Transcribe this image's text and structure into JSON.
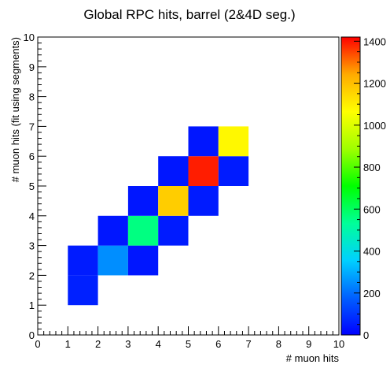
{
  "chart_data": {
    "type": "heatmap",
    "title": "Global RPC hits, barrel (2&4D seg.)",
    "xlabel": "# muon hits",
    "ylabel": "# muon hits (fit using segments)",
    "xlim": [
      0,
      10
    ],
    "ylim": [
      0,
      10
    ],
    "xticks": [
      "0",
      "1",
      "2",
      "3",
      "4",
      "5",
      "6",
      "7",
      "8",
      "9",
      "10"
    ],
    "yticks": [
      "0",
      "1",
      "2",
      "3",
      "4",
      "5",
      "6",
      "7",
      "8",
      "9",
      "10"
    ],
    "bin_width": 1,
    "cells": [
      {
        "x": 1,
        "y": 1,
        "value": 60
      },
      {
        "x": 1,
        "y": 2,
        "value": 50
      },
      {
        "x": 2,
        "y": 2,
        "value": 250
      },
      {
        "x": 3,
        "y": 2,
        "value": 40
      },
      {
        "x": 2,
        "y": 3,
        "value": 40
      },
      {
        "x": 3,
        "y": 3,
        "value": 560
      },
      {
        "x": 4,
        "y": 3,
        "value": 50
      },
      {
        "x": 3,
        "y": 4,
        "value": 40
      },
      {
        "x": 4,
        "y": 4,
        "value": 1170
      },
      {
        "x": 5,
        "y": 4,
        "value": 50
      },
      {
        "x": 4,
        "y": 5,
        "value": 40
      },
      {
        "x": 5,
        "y": 5,
        "value": 1390
      },
      {
        "x": 6,
        "y": 5,
        "value": 50
      },
      {
        "x": 5,
        "y": 6,
        "value": 40
      },
      {
        "x": 6,
        "y": 6,
        "value": 1080
      }
    ],
    "colorbar": {
      "min": 0,
      "max": 1420,
      "ticks": [
        0,
        200,
        400,
        600,
        800,
        1000,
        1200,
        1400
      ],
      "palette": [
        "#0000ff",
        "#0060ff",
        "#00d0ff",
        "#00ff99",
        "#00ff00",
        "#a0ff00",
        "#ffff00",
        "#ffaa00",
        "#ff0000"
      ]
    }
  }
}
